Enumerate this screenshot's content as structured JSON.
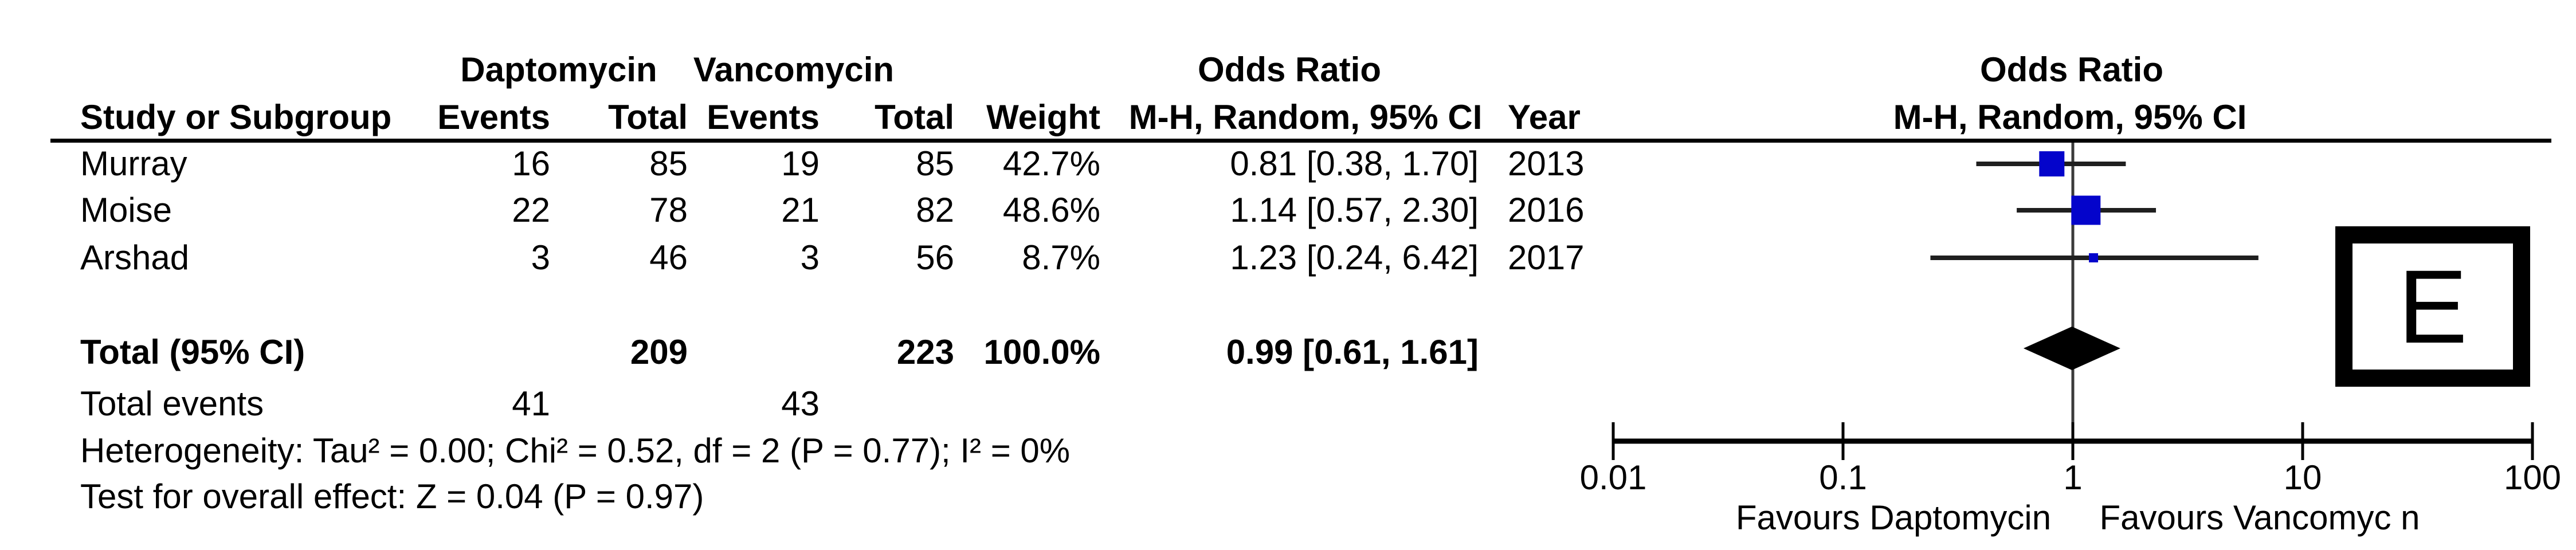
{
  "header": {
    "group1": "Daptomycin",
    "group2": "Vancomycin",
    "or_left": "Odds Ratio",
    "or_right": "Odds Ratio",
    "study": "Study or Subgroup",
    "events1": "Events",
    "total1": "Total",
    "events2": "Events",
    "total2": "Total",
    "weight": "Weight",
    "mh_left": "M-H, Random, 95% CI",
    "mh_right": "M-H, Random, 95% CI",
    "year": "Year"
  },
  "rows": [
    {
      "study": "Murray",
      "e1": "16",
      "t1": "85",
      "e2": "19",
      "t2": "85",
      "weight": "42.7%",
      "or": "0.81 [0.38, 1.70]",
      "year": "2013"
    },
    {
      "study": "Moise",
      "e1": "22",
      "t1": "78",
      "e2": "21",
      "t2": "82",
      "weight": "48.6%",
      "or": "1.14 [0.57, 2.30]",
      "year": "2016"
    },
    {
      "study": "Arshad",
      "e1": "3",
      "t1": "46",
      "e2": "3",
      "t2": "56",
      "weight": "8.7%",
      "or": "1.23 [0.24, 6.42]",
      "year": "2017"
    }
  ],
  "totals": {
    "label": "Total (95% CI)",
    "t1": "209",
    "t2": "223",
    "weight": "100.0%",
    "or": "0.99 [0.61, 1.61]",
    "events_label": "Total events",
    "e1": "41",
    "e2": "43"
  },
  "stats": {
    "heterogeneity": "Heterogeneity: Tau² = 0.00; Chi² = 0.52, df = 2 (P = 0.77); I² = 0%",
    "overall": "Test for overall effect: Z = 0.04 (P = 0.97)"
  },
  "panel_label": "E",
  "chart_data": {
    "type": "forest",
    "x_scale": "log10",
    "effect_measure": "Odds Ratio, M-H, Random, 95% CI",
    "axis": {
      "ticks": [
        0.01,
        0.1,
        1,
        10,
        100
      ],
      "tick_labels": [
        "0.01",
        "0.1",
        "1",
        "10",
        "100"
      ],
      "favours_left": "Favours Daptomycin",
      "favours_right": "Favours Vancomyc n"
    },
    "studies": [
      {
        "name": "Murray",
        "or": 0.81,
        "ci_low": 0.38,
        "ci_high": 1.7,
        "weight_pct": 42.7,
        "year": 2013
      },
      {
        "name": "Moise",
        "or": 1.14,
        "ci_low": 0.57,
        "ci_high": 2.3,
        "weight_pct": 48.6,
        "year": 2016
      },
      {
        "name": "Arshad",
        "or": 1.23,
        "ci_low": 0.24,
        "ci_high": 6.42,
        "weight_pct": 8.7,
        "year": 2017
      }
    ],
    "total": {
      "or": 0.99,
      "ci_low": 0.61,
      "ci_high": 1.61
    },
    "colors": {
      "square": "#0404cb",
      "ci_line": "#1f1f1f",
      "axis": "#000000",
      "diamond": "#000000",
      "guide": "#3a3a3a"
    }
  }
}
